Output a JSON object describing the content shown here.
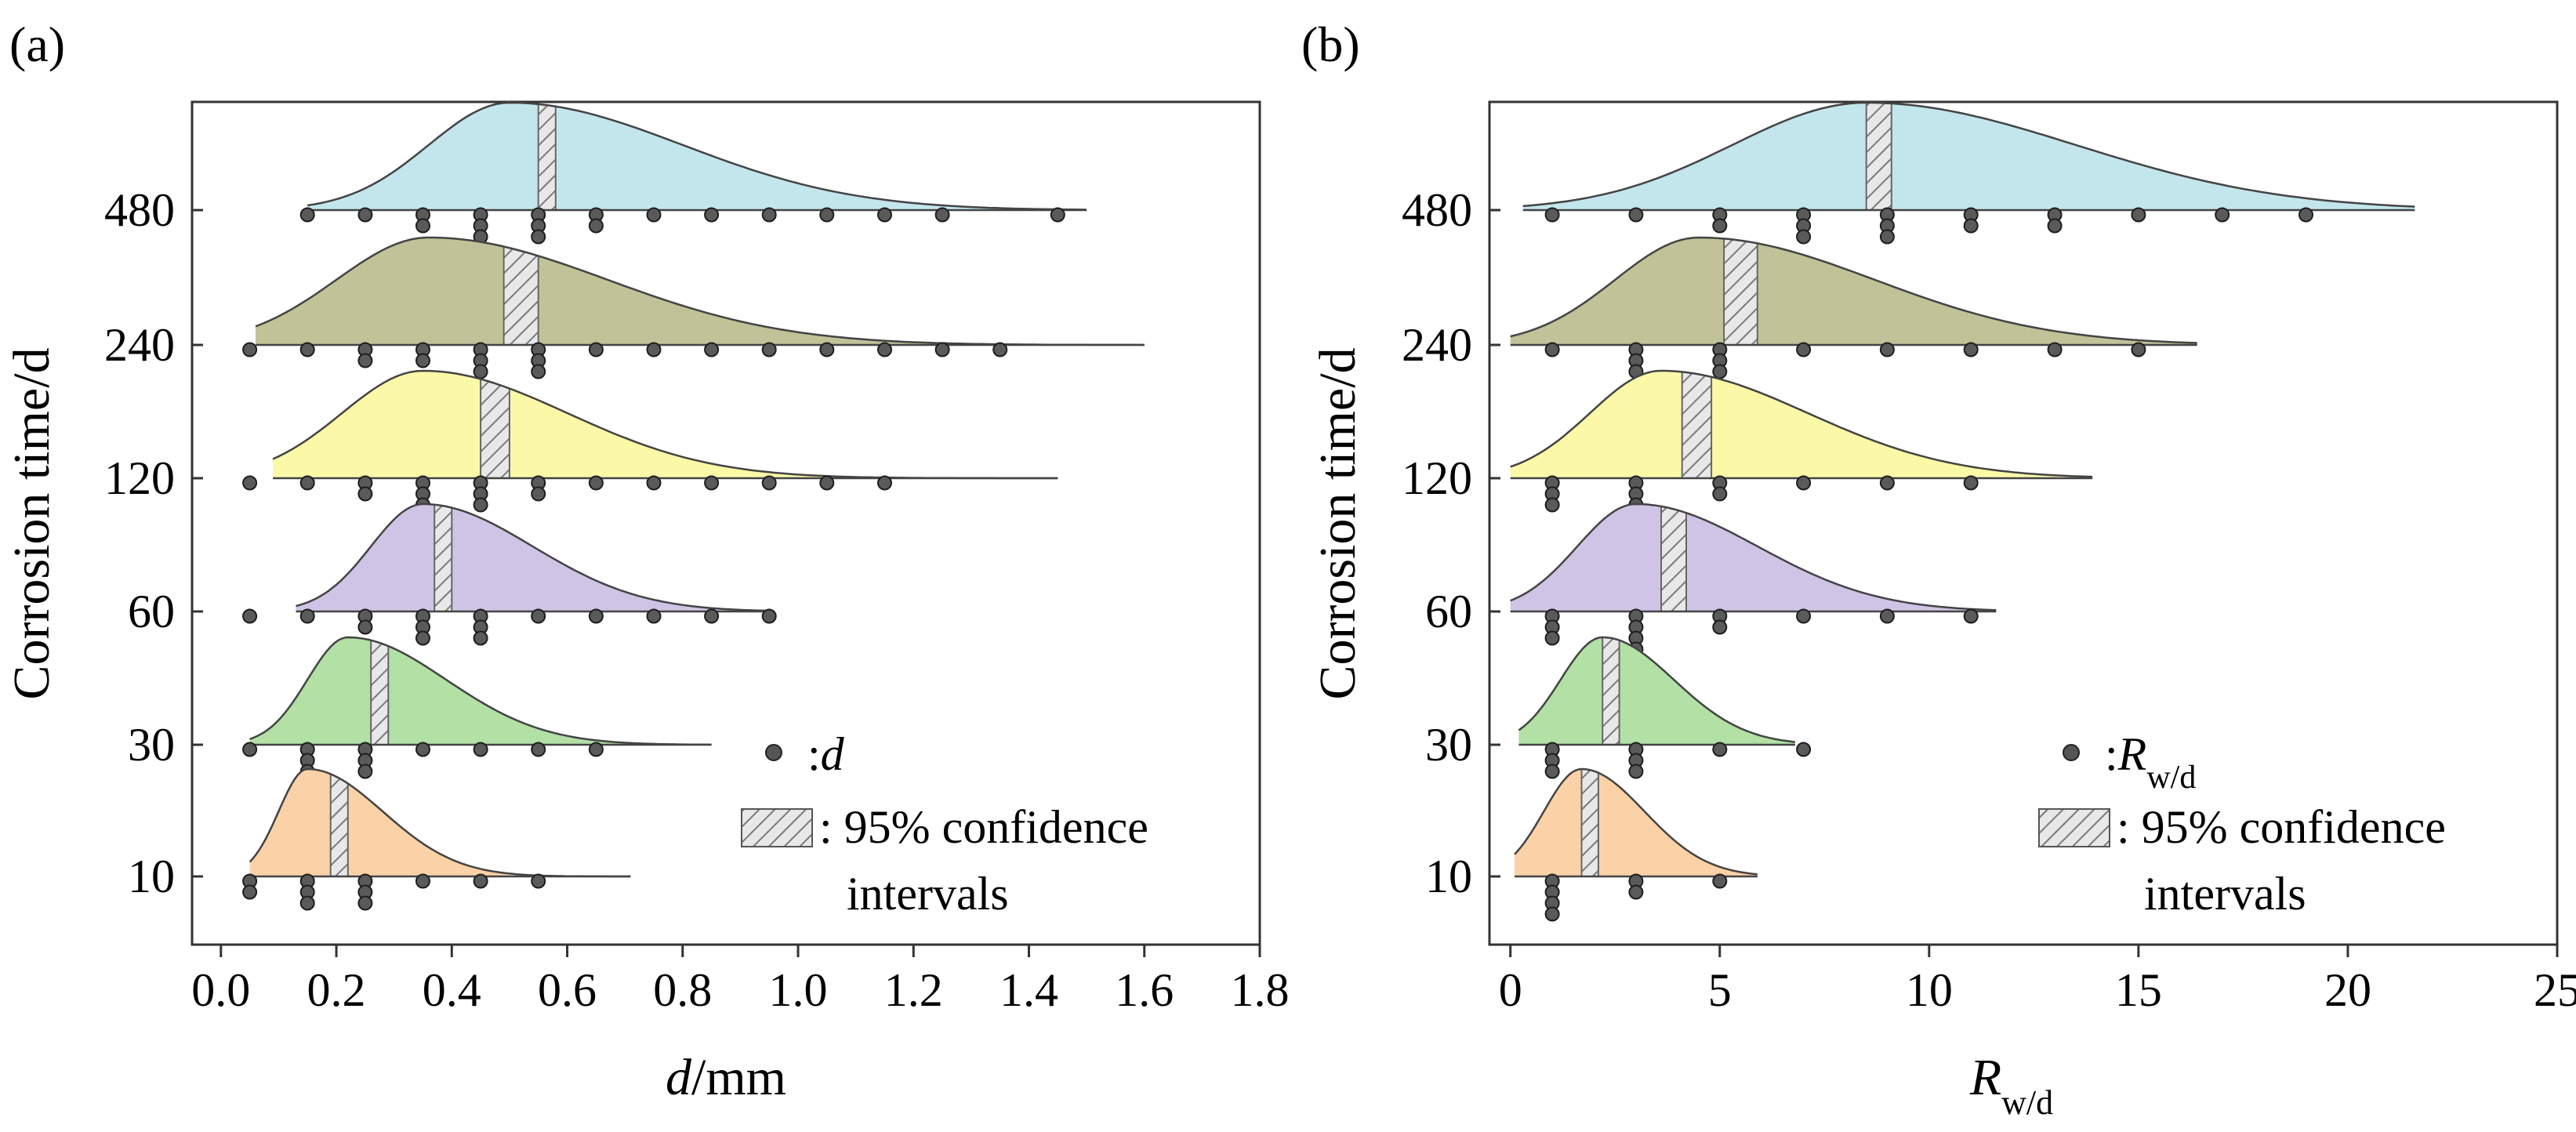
{
  "chart_data": [
    {
      "type": "ridgeline",
      "panel_label": "(a)",
      "title": "",
      "xlabel": {
        "var": "d",
        "unit": "/mm"
      },
      "ylabel": "Corrosion time/d",
      "xlim": [
        -0.05,
        1.8
      ],
      "xticks": [
        "0.0",
        "0.2",
        "0.4",
        "0.6",
        "0.8",
        "1.0",
        "1.2",
        "1.4",
        "1.6",
        "1.8"
      ],
      "categories": [
        "10",
        "30",
        "60",
        "120",
        "240",
        "480"
      ],
      "legend": {
        "position": "bottom-right",
        "point_symbol": ":",
        "point_var": "d",
        "point_sub": "",
        "ci_text_line1": ": 95% confidence",
        "ci_text_line2": "intervals"
      },
      "series": [
        {
          "name": "10",
          "color": "#fbd1a7",
          "peak": 0.15,
          "sigma_l": 0.05,
          "sigma_r": 0.13,
          "x_start": 0.05,
          "x_end": 0.71,
          "height": 0.62,
          "ci": [
            0.19,
            0.22
          ],
          "points": [
            [
              0.05,
              2
            ],
            [
              0.15,
              3
            ],
            [
              0.25,
              3
            ],
            [
              0.35,
              1
            ],
            [
              0.45,
              1
            ],
            [
              0.55,
              1
            ]
          ]
        },
        {
          "name": "30",
          "color": "#b2e0a5",
          "peak": 0.22,
          "sigma_l": 0.07,
          "sigma_r": 0.17,
          "x_start": 0.05,
          "x_end": 0.85,
          "height": 0.62,
          "ci": [
            0.26,
            0.29
          ],
          "points": [
            [
              0.05,
              1
            ],
            [
              0.15,
              3
            ],
            [
              0.25,
              3
            ],
            [
              0.35,
              1
            ],
            [
              0.45,
              1
            ],
            [
              0.55,
              1
            ],
            [
              0.65,
              1
            ]
          ]
        },
        {
          "name": "60",
          "color": "#d0c4e6",
          "peak": 0.35,
          "sigma_l": 0.09,
          "sigma_r": 0.19,
          "x_start": 0.13,
          "x_end": 0.95,
          "height": 0.62,
          "ci": [
            0.37,
            0.4
          ],
          "points": [
            [
              0.05,
              1
            ],
            [
              0.15,
              1
            ],
            [
              0.25,
              2
            ],
            [
              0.35,
              3
            ],
            [
              0.45,
              3
            ],
            [
              0.55,
              1
            ],
            [
              0.65,
              1
            ],
            [
              0.75,
              1
            ],
            [
              0.85,
              1
            ],
            [
              0.95,
              1
            ]
          ]
        },
        {
          "name": "120",
          "color": "#fbf9a8",
          "peak": 0.35,
          "sigma_l": 0.14,
          "sigma_r": 0.25,
          "x_start": 0.09,
          "x_end": 1.45,
          "height": 0.62,
          "ci": [
            0.45,
            0.5
          ],
          "points": [
            [
              0.05,
              1
            ],
            [
              0.15,
              1
            ],
            [
              0.25,
              2
            ],
            [
              0.35,
              3
            ],
            [
              0.45,
              3
            ],
            [
              0.55,
              2
            ],
            [
              0.65,
              1
            ],
            [
              0.75,
              1
            ],
            [
              0.85,
              1
            ],
            [
              0.95,
              1
            ],
            [
              1.05,
              1
            ],
            [
              1.15,
              1
            ]
          ]
        },
        {
          "name": "240",
          "color": "#c1c298",
          "peak": 0.36,
          "sigma_l": 0.16,
          "sigma_r": 0.31,
          "x_start": 0.06,
          "x_end": 1.6,
          "height": 0.62,
          "ci": [
            0.49,
            0.55
          ],
          "points": [
            [
              0.05,
              1
            ],
            [
              0.15,
              1
            ],
            [
              0.25,
              2
            ],
            [
              0.35,
              2
            ],
            [
              0.45,
              3
            ],
            [
              0.55,
              3
            ],
            [
              0.65,
              1
            ],
            [
              0.75,
              1
            ],
            [
              0.85,
              1
            ],
            [
              0.95,
              1
            ],
            [
              1.05,
              1
            ],
            [
              1.15,
              1
            ],
            [
              1.25,
              1
            ],
            [
              1.35,
              1
            ]
          ]
        },
        {
          "name": "480",
          "color": "#c3e6ec",
          "peak": 0.5,
          "sigma_l": 0.14,
          "sigma_r": 0.3,
          "x_start": 0.15,
          "x_end": 1.5,
          "height": 0.62,
          "ci": [
            0.55,
            0.58
          ],
          "points": [
            [
              0.15,
              1
            ],
            [
              0.25,
              1
            ],
            [
              0.35,
              2
            ],
            [
              0.45,
              3
            ],
            [
              0.55,
              3
            ],
            [
              0.65,
              2
            ],
            [
              0.75,
              1
            ],
            [
              0.85,
              1
            ],
            [
              0.95,
              1
            ],
            [
              1.05,
              1
            ],
            [
              1.15,
              1
            ],
            [
              1.25,
              1
            ],
            [
              1.45,
              1
            ]
          ]
        }
      ]
    },
    {
      "type": "ridgeline",
      "panel_label": "(b)",
      "title": "",
      "xlabel": {
        "var": "R",
        "sub": "w/d"
      },
      "ylabel": "Corrosion time/d",
      "xlim": [
        -0.5,
        25
      ],
      "xticks": [
        "0",
        "5",
        "10",
        "15",
        "20",
        "25"
      ],
      "categories": [
        "10",
        "30",
        "60",
        "120",
        "240",
        "480"
      ],
      "legend": {
        "position": "bottom-right",
        "point_symbol": ":",
        "point_var": "R",
        "point_sub": "w/d",
        "ci_text_line1": ": 95% confidence",
        "ci_text_line2": "intervals"
      },
      "series": [
        {
          "name": "10",
          "color": "#fbd1a7",
          "peak": 1.7,
          "sigma_l": 0.9,
          "sigma_r": 1.5,
          "x_start": 0.1,
          "x_end": 5.9,
          "height": 0.62,
          "ci": [
            1.7,
            2.1
          ],
          "points": [
            [
              1,
              4
            ],
            [
              3,
              2
            ],
            [
              5,
              1
            ]
          ]
        },
        {
          "name": "30",
          "color": "#b2e0a5",
          "peak": 2.2,
          "sigma_l": 1.0,
          "sigma_r": 1.7,
          "x_start": 0.2,
          "x_end": 6.8,
          "height": 0.62,
          "ci": [
            2.2,
            2.6
          ],
          "points": [
            [
              1,
              3
            ],
            [
              3,
              3
            ],
            [
              5,
              1
            ],
            [
              7,
              1
            ]
          ]
        },
        {
          "name": "60",
          "color": "#d0c4e6",
          "peak": 3.0,
          "sigma_l": 1.4,
          "sigma_r": 2.9,
          "x_start": 0.0,
          "x_end": 11.6,
          "height": 0.62,
          "ci": [
            3.6,
            4.2
          ],
          "points": [
            [
              1,
              3
            ],
            [
              3,
              4
            ],
            [
              5,
              2
            ],
            [
              7,
              1
            ],
            [
              9,
              1
            ],
            [
              11,
              1
            ]
          ]
        },
        {
          "name": "120",
          "color": "#fbf9a8",
          "peak": 3.6,
          "sigma_l": 1.7,
          "sigma_r": 3.5,
          "x_start": 0.0,
          "x_end": 13.9,
          "height": 0.62,
          "ci": [
            4.1,
            4.8
          ],
          "points": [
            [
              1,
              3
            ],
            [
              3,
              4
            ],
            [
              5,
              2
            ],
            [
              7,
              1
            ],
            [
              9,
              1
            ],
            [
              11,
              1
            ]
          ]
        },
        {
          "name": "240",
          "color": "#c1c298",
          "peak": 4.5,
          "sigma_l": 2.0,
          "sigma_r": 4.2,
          "x_start": 0.0,
          "x_end": 16.4,
          "height": 0.62,
          "ci": [
            5.1,
            5.9
          ],
          "points": [
            [
              1,
              1
            ],
            [
              3,
              3
            ],
            [
              5,
              3
            ],
            [
              7,
              1
            ],
            [
              9,
              1
            ],
            [
              11,
              1
            ],
            [
              13,
              1
            ],
            [
              15,
              1
            ]
          ]
        },
        {
          "name": "480",
          "color": "#c3e6ec",
          "peak": 8.5,
          "sigma_l": 3.2,
          "sigma_r": 5.0,
          "x_start": 0.3,
          "x_end": 21.6,
          "height": 0.62,
          "ci": [
            8.5,
            9.1
          ],
          "points": [
            [
              1,
              1
            ],
            [
              3,
              1
            ],
            [
              5,
              2
            ],
            [
              7,
              3
            ],
            [
              9,
              3
            ],
            [
              11,
              2
            ],
            [
              13,
              2
            ],
            [
              15,
              1
            ],
            [
              17,
              1
            ],
            [
              19,
              1
            ]
          ]
        }
      ]
    }
  ]
}
